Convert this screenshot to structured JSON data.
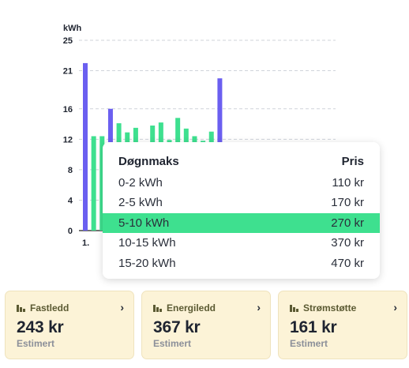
{
  "chart_data": {
    "type": "bar",
    "ylabel": "kWh",
    "yticks": [
      25,
      21,
      16,
      12,
      8,
      4,
      0
    ],
    "ylim": [
      0,
      25
    ],
    "grid": true,
    "xtick_first": "1.",
    "values": [
      22,
      12.4,
      12.4,
      16,
      14.1,
      12.9,
      13.5,
      11.6,
      13.8,
      14.2,
      11.9,
      14.8,
      13.4,
      12.4,
      11.8,
      13,
      20
    ],
    "peak_indices": [
      0,
      3,
      16
    ],
    "colors": {
      "peak": "#6b5ff0",
      "normal": "#3ee08f",
      "grid": "#cfd3da",
      "text": "#1f2430"
    }
  },
  "popup": {
    "header": {
      "label": "Døgnmaks",
      "price": "Pris"
    },
    "rows": [
      {
        "label": "0-2 kWh",
        "price": "110 kr"
      },
      {
        "label": "2-5 kWh",
        "price": "170 kr"
      },
      {
        "label": "5-10 kWh",
        "price": "270 kr"
      },
      {
        "label": "10-15 kWh",
        "price": "370 kr"
      },
      {
        "label": "15-20 kWh",
        "price": "470 kr"
      }
    ],
    "active_index": 2
  },
  "cards": [
    {
      "title": "Fastledd",
      "value": "243 kr",
      "sub": "Estimert",
      "icon": "bar-chart-icon"
    },
    {
      "title": "Energiledd",
      "value": "367 kr",
      "sub": "Estimert",
      "icon": "bar-chart-icon"
    },
    {
      "title": "Strømstøtte",
      "value": "161 kr",
      "sub": "Estimert",
      "icon": "bar-chart-icon"
    }
  ]
}
